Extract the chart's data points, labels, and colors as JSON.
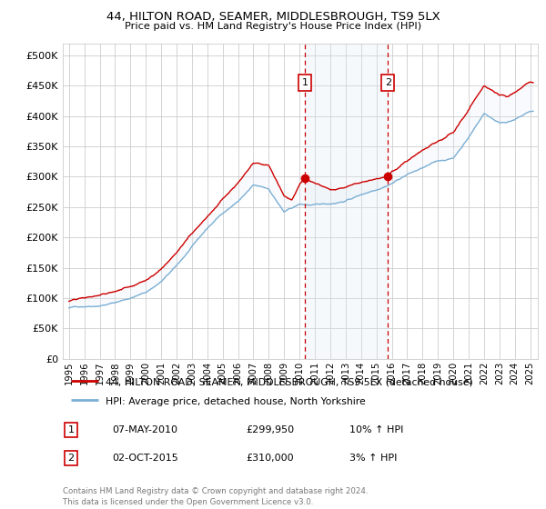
{
  "title1": "44, HILTON ROAD, SEAMER, MIDDLESBROUGH, TS9 5LX",
  "title2": "Price paid vs. HM Land Registry's House Price Index (HPI)",
  "legend_line1": "44, HILTON ROAD, SEAMER, MIDDLESBROUGH, TS9 5LX (detached house)",
  "legend_line2": "HPI: Average price, detached house, North Yorkshire",
  "annotation1": {
    "label": "1",
    "date_str": "07-MAY-2010",
    "price_str": "£299,950",
    "hpi_str": "10% ↑ HPI",
    "year": 2010.35
  },
  "annotation2": {
    "label": "2",
    "date_str": "02-OCT-2015",
    "price_str": "£310,000",
    "hpi_str": "3% ↑ HPI",
    "year": 2015.75
  },
  "footnote": "Contains HM Land Registry data © Crown copyright and database right 2024.\nThis data is licensed under the Open Government Licence v3.0.",
  "ylim": [
    0,
    520000
  ],
  "yticks": [
    0,
    50000,
    100000,
    150000,
    200000,
    250000,
    300000,
    350000,
    400000,
    450000,
    500000
  ],
  "background_color": "#ffffff",
  "plot_bg_color": "#ffffff",
  "grid_color": "#cccccc",
  "line1_color": "#cc0000",
  "line2_color": "#7bafd4",
  "shade_color": "#dce9f5",
  "annotation_box_color": "#cc0000",
  "dashed_line_color": "#cc0000",
  "key_years_hpi": [
    1995,
    1996,
    1997,
    1998,
    1999,
    2000,
    2001,
    2002,
    2003,
    2004,
    2005,
    2006,
    2007,
    2008,
    2009,
    2010,
    2011,
    2012,
    2013,
    2014,
    2015,
    2016,
    2017,
    2018,
    2019,
    2020,
    2021,
    2022,
    2023,
    2024,
    2025
  ],
  "key_vals_hpi": [
    84000,
    87000,
    90000,
    95000,
    103000,
    112000,
    130000,
    155000,
    185000,
    215000,
    240000,
    260000,
    285000,
    278000,
    240000,
    252000,
    250000,
    252000,
    258000,
    268000,
    278000,
    290000,
    305000,
    315000,
    325000,
    330000,
    365000,
    405000,
    390000,
    395000,
    408000
  ],
  "key_years_prop": [
    1995,
    1996,
    1997,
    1998,
    1999,
    2000,
    2001,
    2002,
    2003,
    2004,
    2005,
    2006,
    2007,
    2008,
    2008.5,
    2009,
    2009.5,
    2010,
    2010.35,
    2011,
    2012,
    2013,
    2014,
    2015,
    2015.75,
    2016,
    2017,
    2018,
    2019,
    2020,
    2021,
    2022,
    2022.5,
    2023,
    2023.5,
    2024,
    2024.5,
    2025
  ],
  "key_vals_prop": [
    95000,
    98000,
    102000,
    108000,
    118000,
    130000,
    150000,
    178000,
    210000,
    240000,
    270000,
    295000,
    325000,
    320000,
    295000,
    270000,
    265000,
    290000,
    299950,
    290000,
    282000,
    286000,
    296000,
    305000,
    310000,
    318000,
    335000,
    352000,
    365000,
    378000,
    415000,
    455000,
    448000,
    438000,
    435000,
    440000,
    448000,
    455000
  ]
}
